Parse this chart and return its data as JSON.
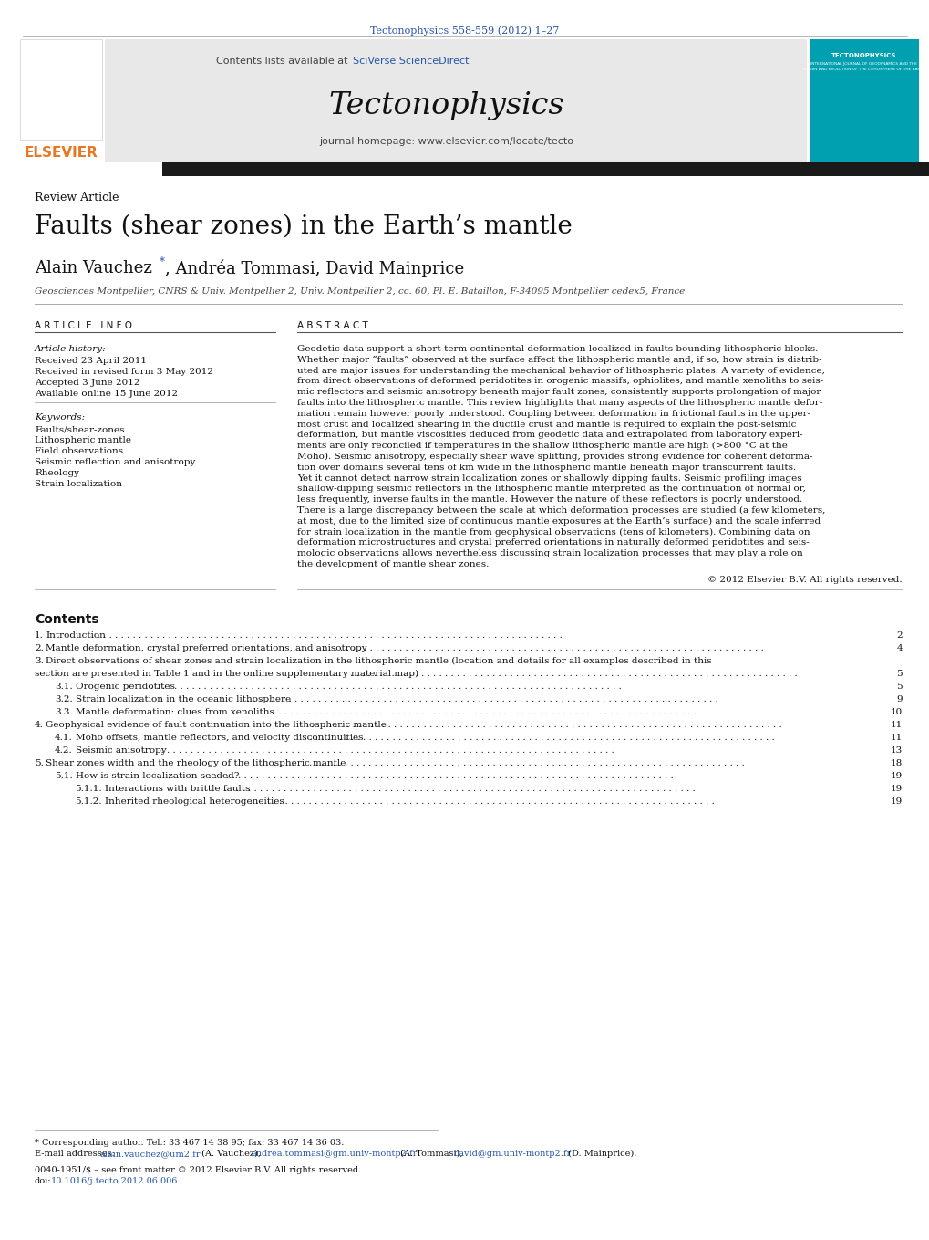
{
  "citation_line": "Tectonophysics 558-559 (2012) 1–27",
  "sciverse_text": "SciVerse ScienceDirect",
  "journal_name": "Tectonophysics",
  "homepage_text": "journal homepage: www.elsevier.com/locate/tecto",
  "elsevier_text": "ELSEVIER",
  "article_type": "Review Article",
  "title": "Faults (shear zones) in the Earth’s mantle",
  "authors_part1": "Alain Vauchez ",
  "authors_star": "*",
  "authors_part2": ", Andréa Tommasi, David Mainprice",
  "affiliation": "Geosciences Montpellier, CNRS & Univ. Montpellier 2, Univ. Montpellier 2, cc. 60, Pl. E. Bataillon, F-34095 Montpellier cedex5, France",
  "article_info_header": "A R T I C L E   I N F O",
  "abstract_header": "A B S T R A C T",
  "article_history_label": "Article history:",
  "received": "Received 23 April 2011",
  "revised": "Received in revised form 3 May 2012",
  "accepted": "Accepted 3 June 2012",
  "available": "Available online 15 June 2012",
  "keywords_label": "Keywords:",
  "keywords": [
    "Faults/shear-zones",
    "Lithospheric mantle",
    "Field observations",
    "Seismic reflection and anisotropy",
    "Rheology",
    "Strain localization"
  ],
  "abstract_lines": [
    "Geodetic data support a short-term continental deformation localized in faults bounding lithospheric blocks.",
    "Whether major “faults” observed at the surface affect the lithospheric mantle and, if so, how strain is distrib-",
    "uted are major issues for understanding the mechanical behavior of lithospheric plates. A variety of evidence,",
    "from direct observations of deformed peridotites in orogenic massifs, ophiolites, and mantle xenoliths to seis-",
    "mic reflectors and seismic anisotropy beneath major fault zones, consistently supports prolongation of major",
    "faults into the lithospheric mantle. This review highlights that many aspects of the lithospheric mantle defor-",
    "mation remain however poorly understood. Coupling between deformation in frictional faults in the upper-",
    "most crust and localized shearing in the ductile crust and mantle is required to explain the post-seismic",
    "deformation, but mantle viscosities deduced from geodetic data and extrapolated from laboratory experi-",
    "ments are only reconciled if temperatures in the shallow lithospheric mantle are high (>800 °C at the",
    "Moho). Seismic anisotropy, especially shear wave splitting, provides strong evidence for coherent deforma-",
    "tion over domains several tens of km wide in the lithospheric mantle beneath major transcurrent faults.",
    "Yet it cannot detect narrow strain localization zones or shallowly dipping faults. Seismic profiling images",
    "shallow-dipping seismic reflectors in the lithospheric mantle interpreted as the continuation of normal or,",
    "less frequently, inverse faults in the mantle. However the nature of these reflectors is poorly understood.",
    "There is a large discrepancy between the scale at which deformation processes are studied (a few kilometers,",
    "at most, due to the limited size of continuous mantle exposures at the Earth’s surface) and the scale inferred",
    "for strain localization in the mantle from geophysical observations (tens of kilometers). Combining data on",
    "deformation microstructures and crystal preferred orientations in naturally deformed peridotites and seis-",
    "mologic observations allows nevertheless discussing strain localization processes that may play a role on",
    "the development of mantle shear zones."
  ],
  "copyright": "© 2012 Elsevier B.V. All rights reserved.",
  "contents_header": "Contents",
  "toc": [
    {
      "num": "1.",
      "title": "Introduction",
      "dots": true,
      "page": "2",
      "indent": 0
    },
    {
      "num": "2.",
      "title": "Mantle deformation, crystal preferred orientations, and anisotropy",
      "dots": true,
      "page": "4",
      "indent": 0
    },
    {
      "num": "3.",
      "title": "Direct observations of shear zones and strain localization in the lithospheric mantle (location and details for all examples described in this",
      "dots": false,
      "page": "",
      "indent": 0
    },
    {
      "num": "",
      "title": "section are presented in Table 1 and in the online supplementary material map)",
      "dots": true,
      "page": "5",
      "indent": 0
    },
    {
      "num": "3.1.",
      "title": "Orogenic peridotites",
      "dots": true,
      "page": "5",
      "indent": 1
    },
    {
      "num": "3.2.",
      "title": "Strain localization in the oceanic lithosphere",
      "dots": true,
      "page": "9",
      "indent": 1
    },
    {
      "num": "3.3.",
      "title": "Mantle deformation: clues from xenoliths",
      "dots": true,
      "page": "10",
      "indent": 1
    },
    {
      "num": "4.",
      "title": "Geophysical evidence of fault continuation into the lithospheric mantle",
      "dots": true,
      "page": "11",
      "indent": 0
    },
    {
      "num": "4.1.",
      "title": "Moho offsets, mantle reflectors, and velocity discontinuities",
      "dots": true,
      "page": "11",
      "indent": 1
    },
    {
      "num": "4.2.",
      "title": "Seismic anisotropy",
      "dots": true,
      "page": "13",
      "indent": 1
    },
    {
      "num": "5.",
      "title": "Shear zones width and the rheology of the lithospheric mantle",
      "dots": true,
      "page": "18",
      "indent": 0
    },
    {
      "num": "5.1.",
      "title": "How is strain localization seeded?",
      "dots": true,
      "page": "19",
      "indent": 1
    },
    {
      "num": "5.1.1.",
      "title": "Interactions with brittle faults",
      "dots": true,
      "page": "19",
      "indent": 2
    },
    {
      "num": "5.1.2.",
      "title": "Inherited rheological heterogeneities",
      "dots": true,
      "page": "19",
      "indent": 2
    }
  ],
  "footnote_star_line": "* Corresponding author. Tel.: 33 467 14 38 95; fax: 33 467 14 36 03.",
  "email_prefix": "E-mail addresses: ",
  "email1": "alain.vauchez@um2.fr",
  "email1_name": " (A. Vauchez), ",
  "email2": "andrea.tommasi@gm.univ-montp2.fr",
  "email2_name": " (A. Tommasi), ",
  "email3": "david@gm.univ-montp2.fr",
  "email3_name": " (D. Mainprice).",
  "issn_line": "0040-1951/$ – see front matter © 2012 Elsevier B.V. All rights reserved.",
  "doi_prefix": "doi:",
  "doi_link": "10.1016/j.tecto.2012.06.006",
  "link_color": "#2557a7",
  "elsevier_orange": "#e87722",
  "tecto_bg": "#00a0b0",
  "black_bar_color": "#1a1a1a",
  "header_bg": "#e8e8e8",
  "text_dark": "#111111",
  "text_gray": "#444444"
}
